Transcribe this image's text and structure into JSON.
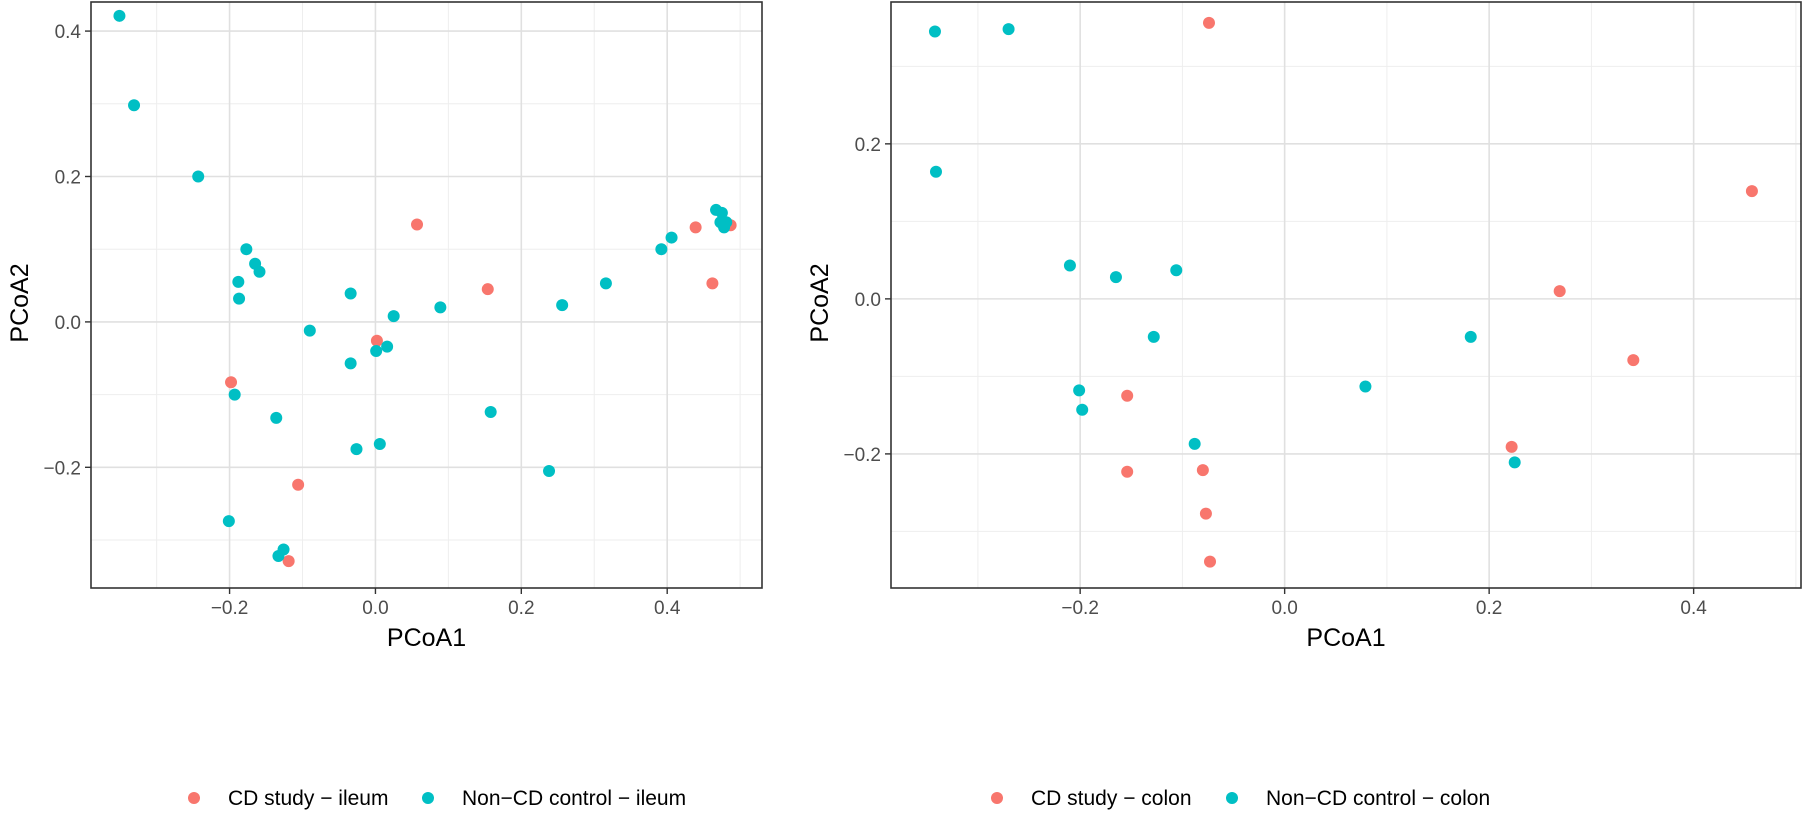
{
  "colors": {
    "cd": "#F8766D",
    "control": "#00BFC4"
  },
  "chart_data": [
    {
      "type": "scatter",
      "xlabel": "PCoA1",
      "ylabel": "PCoA2",
      "xlim": [
        -0.39,
        0.53
      ],
      "ylim": [
        -0.366,
        0.44
      ],
      "xticks": [
        -0.2,
        0.0,
        0.2,
        0.4
      ],
      "yticks": [
        -0.2,
        0.0,
        0.2,
        0.4
      ],
      "xtick_labels": [
        "−0.2",
        "0.0",
        "0.2",
        "0.4"
      ],
      "ytick_labels": [
        "−0.2",
        "0.0",
        "0.2",
        "0.4"
      ],
      "legend_position": "bottom",
      "series": [
        {
          "name": "CD study − ileum",
          "color": "#F8766D",
          "points": [
            [
              0.057,
              0.134
            ],
            [
              0.154,
              0.045
            ],
            [
              0.439,
              0.13
            ],
            [
              0.487,
              0.133
            ],
            [
              0.462,
              0.053
            ],
            [
              0.002,
              -0.026
            ],
            [
              -0.198,
              -0.083
            ],
            [
              -0.106,
              -0.224
            ],
            [
              -0.119,
              -0.329
            ]
          ]
        },
        {
          "name": "Non−CD control − ileum",
          "color": "#00BFC4",
          "points": [
            [
              -0.351,
              0.421
            ],
            [
              -0.331,
              0.298
            ],
            [
              -0.243,
              0.2
            ],
            [
              -0.177,
              0.1
            ],
            [
              -0.165,
              0.08
            ],
            [
              -0.159,
              0.069
            ],
            [
              -0.188,
              0.055
            ],
            [
              -0.187,
              0.032
            ],
            [
              -0.09,
              -0.012
            ],
            [
              -0.034,
              0.039
            ],
            [
              0.025,
              0.008
            ],
            [
              0.089,
              0.02
            ],
            [
              0.256,
              0.023
            ],
            [
              0.316,
              0.053
            ],
            [
              0.392,
              0.1
            ],
            [
              0.406,
              0.116
            ],
            [
              0.467,
              0.154
            ],
            [
              0.475,
              0.15
            ],
            [
              0.473,
              0.137
            ],
            [
              0.481,
              0.137
            ],
            [
              0.478,
              0.13
            ],
            [
              0.016,
              -0.034
            ],
            [
              0.001,
              -0.04
            ],
            [
              -0.034,
              -0.057
            ],
            [
              -0.193,
              -0.1
            ],
            [
              -0.136,
              -0.132
            ],
            [
              0.158,
              -0.124
            ],
            [
              0.006,
              -0.168
            ],
            [
              -0.026,
              -0.175
            ],
            [
              0.238,
              -0.205
            ],
            [
              -0.201,
              -0.274
            ],
            [
              -0.126,
              -0.313
            ],
            [
              -0.133,
              -0.322
            ]
          ]
        }
      ]
    },
    {
      "type": "scatter",
      "xlabel": "PCoA1",
      "ylabel": "PCoA2",
      "xlim": [
        -0.385,
        0.505
      ],
      "ylim": [
        -0.373,
        0.383
      ],
      "xticks": [
        -0.2,
        0.0,
        0.2,
        0.4
      ],
      "yticks": [
        -0.2,
        0.0,
        0.2
      ],
      "xtick_labels": [
        "−0.2",
        "0.0",
        "0.2",
        "0.4"
      ],
      "ytick_labels": [
        "−0.2",
        "0.0",
        "0.2"
      ],
      "legend_position": "bottom",
      "series": [
        {
          "name": "CD study − colon",
          "color": "#F8766D",
          "points": [
            [
              -0.074,
              0.356
            ],
            [
              0.457,
              0.139
            ],
            [
              0.269,
              0.01
            ],
            [
              0.341,
              -0.079
            ],
            [
              -0.154,
              -0.125
            ],
            [
              0.222,
              -0.191
            ],
            [
              -0.154,
              -0.223
            ],
            [
              -0.08,
              -0.221
            ],
            [
              -0.077,
              -0.277
            ],
            [
              -0.073,
              -0.339
            ]
          ]
        },
        {
          "name": "Non−CD control − colon",
          "color": "#00BFC4",
          "points": [
            [
              -0.342,
              0.345
            ],
            [
              -0.27,
              0.348
            ],
            [
              -0.341,
              0.164
            ],
            [
              -0.21,
              0.043
            ],
            [
              -0.165,
              0.028
            ],
            [
              -0.106,
              0.037
            ],
            [
              -0.128,
              -0.049
            ],
            [
              0.182,
              -0.049
            ],
            [
              0.079,
              -0.113
            ],
            [
              -0.201,
              -0.118
            ],
            [
              -0.198,
              -0.143
            ],
            [
              -0.088,
              -0.187
            ],
            [
              0.225,
              -0.211
            ]
          ]
        }
      ]
    }
  ]
}
